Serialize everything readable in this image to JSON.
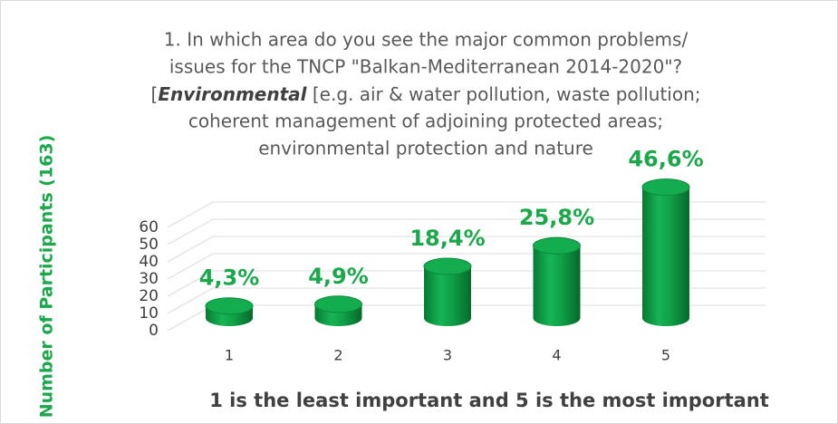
{
  "chart_data": {
    "type": "bar",
    "title": [
      "1. In which area do you see the major common problems/",
      "issues for the TNCP \"Balkan-Mediterranean  2014-2020\"?",
      [
        "[",
        "Environmental",
        " [e.g. air & water pollution, waste pollution;"
      ],
      "coherent management of adjoining protected areas;",
      "environmental protection and nature"
    ],
    "y_label": "Number of Participants (163)",
    "x_label": "1 is the least important and 5 is the most important",
    "categories": [
      "1",
      "2",
      "3",
      "4",
      "5"
    ],
    "values": [
      7,
      8,
      30,
      42,
      76
    ],
    "value_labels": [
      "4,3%",
      "4,9%",
      "18,4%",
      "25,8%",
      "46,6%"
    ],
    "color": "#0fa046",
    "ylim": [
      0,
      80
    ],
    "yticks": [
      0,
      10,
      20,
      30,
      40,
      50,
      60
    ],
    "grid": true
  }
}
